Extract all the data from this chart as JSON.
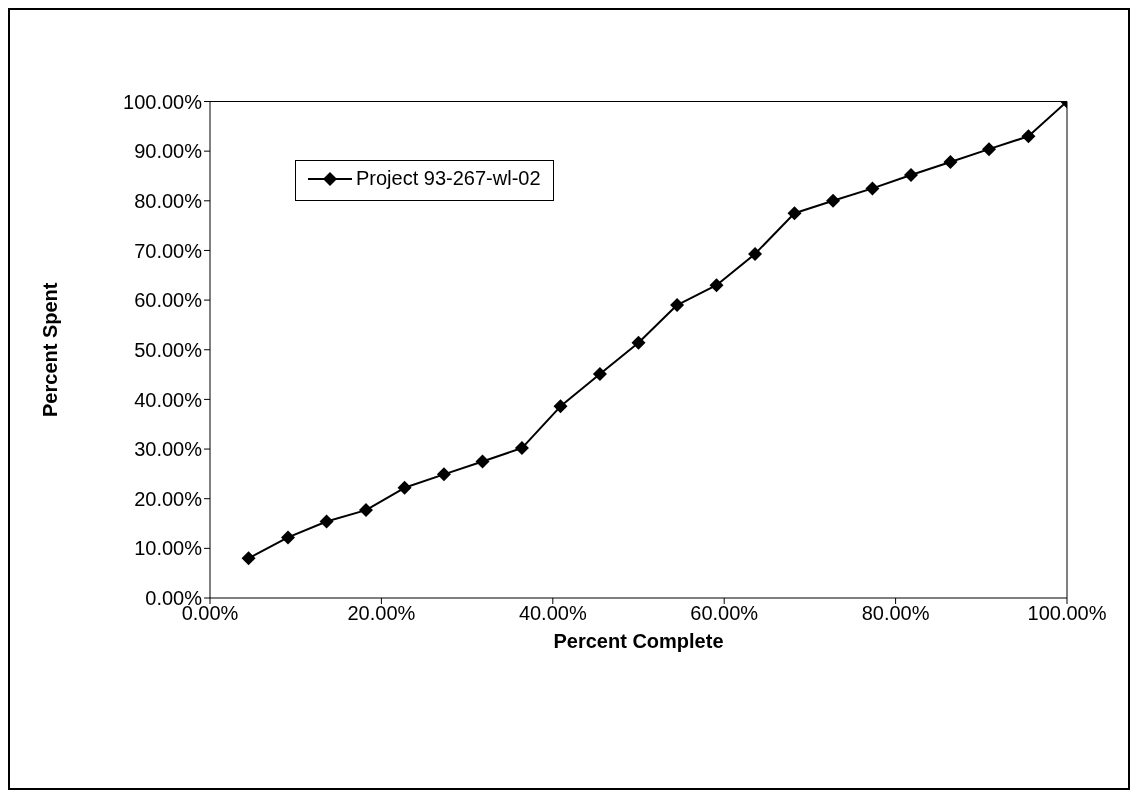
{
  "chart_data": {
    "type": "line",
    "xlabel": "Percent Complete",
    "ylabel": "Percent Spent",
    "x": [
      4.5,
      9.1,
      13.6,
      18.2,
      22.7,
      27.3,
      31.8,
      36.4,
      40.9,
      45.5,
      50,
      54.5,
      59.1,
      63.6,
      68.2,
      72.7,
      77.3,
      81.8,
      86.4,
      90.9,
      95.5,
      100
    ],
    "series": [
      {
        "name": "Project 93-267-wl-02",
        "color": "#000000",
        "values": [
          8.0,
          12.2,
          15.4,
          17.7,
          22.2,
          24.9,
          27.5,
          30.2,
          38.6,
          45.1,
          51.4,
          59.0,
          63.0,
          69.3,
          77.5,
          80.0,
          82.5,
          85.2,
          87.8,
          90.4,
          93.0,
          100
        ]
      }
    ],
    "xlim": [
      0,
      100
    ],
    "xticks": [
      {
        "value": 0,
        "label": "0.00%"
      },
      {
        "value": 20,
        "label": "20.00%"
      },
      {
        "value": 40,
        "label": "40.00%"
      },
      {
        "value": 60,
        "label": "60.00%"
      },
      {
        "value": 80,
        "label": "80.00%"
      },
      {
        "value": 100,
        "label": "100.00%"
      }
    ],
    "ylim": [
      0,
      100
    ],
    "yticks": [
      {
        "value": 0,
        "label": "0.00%"
      },
      {
        "value": 10,
        "label": "10.00%"
      },
      {
        "value": 20,
        "label": "20.00%"
      },
      {
        "value": 30,
        "label": "30.00%"
      },
      {
        "value": 40,
        "label": "40.00%"
      },
      {
        "value": 50,
        "label": "50.00%"
      },
      {
        "value": 60,
        "label": "60.00%"
      },
      {
        "value": 70,
        "label": "70.00%"
      },
      {
        "value": 80,
        "label": "80.00%"
      },
      {
        "value": 90,
        "label": "90.00%"
      },
      {
        "value": 100,
        "label": "100.00%"
      }
    ],
    "grid": false,
    "legend": "top left",
    "marker": "diamond",
    "line_style": "solid"
  }
}
